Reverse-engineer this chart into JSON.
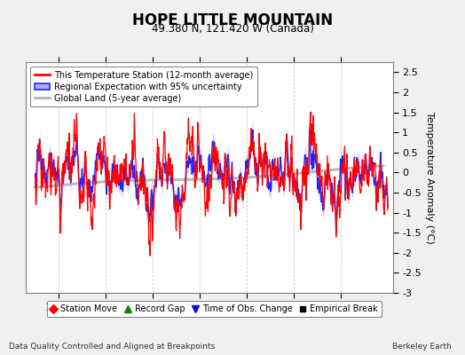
{
  "title": "HOPE LITTLE MOUNTAIN",
  "subtitle": "49.380 N, 121.420 W (Canada)",
  "ylabel": "Temperature Anomaly (°C)",
  "xlabel_note": "Data Quality Controlled and Aligned at Breakpoints",
  "credit": "Berkeley Earth",
  "ylim": [
    -3.0,
    2.75
  ],
  "yticks": [
    -3,
    -2.5,
    -2,
    -1.5,
    -1,
    -0.5,
    0,
    0.5,
    1,
    1.5,
    2,
    2.5
  ],
  "xlim": [
    1893,
    1971
  ],
  "xticks": [
    1900,
    1910,
    1920,
    1930,
    1940,
    1950,
    1960
  ],
  "station_color": "#FF0000",
  "regional_color": "#2222FF",
  "regional_fill_color": "#AAAAEE",
  "global_color": "#BBBBBB",
  "bg_color": "#F0F0F0",
  "plot_bg": "#FFFFFF",
  "legend_marker_colors": {
    "station_move": "#FF0000",
    "record_gap": "#008800",
    "time_change": "#0000FF",
    "empirical": "#000000"
  }
}
